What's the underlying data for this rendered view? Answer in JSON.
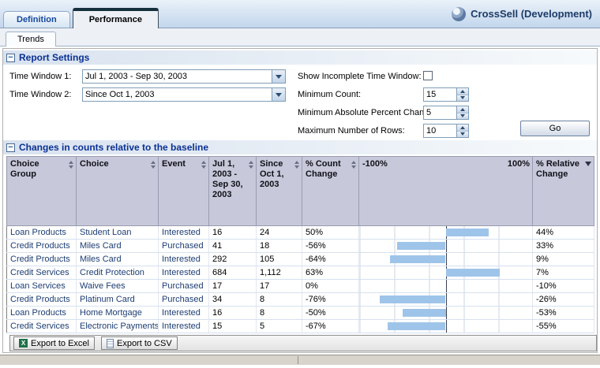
{
  "header": {
    "brand": "CrossSell (Development)",
    "tabs": [
      {
        "label": "Definition",
        "active": false
      },
      {
        "label": "Performance",
        "active": true
      }
    ],
    "subtab": "Trends"
  },
  "report_settings": {
    "title": "Report Settings",
    "collapse_icon": "−",
    "time_window_1": {
      "label": "Time Window 1:",
      "value": "Jul 1, 2003 - Sep 30, 2003"
    },
    "time_window_2": {
      "label": "Time Window 2:",
      "value": "Since Oct 1, 2003"
    },
    "show_incomplete": {
      "label": "Show Incomplete Time Window:",
      "checked": false
    },
    "minimum_count": {
      "label": "Minimum Count:",
      "value": "15"
    },
    "minimum_abs_percent_change": {
      "label": "Minimum Absolute Percent Change",
      "value": "5"
    },
    "maximum_rows": {
      "label": "Maximum Number of Rows:",
      "value": "10"
    },
    "go_button": "Go"
  },
  "changes_table": {
    "title": "Changes in counts relative to the baseline",
    "collapse_icon": "−",
    "columns": [
      {
        "label": "Choice Group",
        "sortable": true
      },
      {
        "label": "Choice",
        "sortable": true
      },
      {
        "label": "Event",
        "sortable": true
      },
      {
        "label": "Jul 1, 2003 - Sep 30, 2003",
        "sortable": true
      },
      {
        "label": "Since Oct 1, 2003",
        "sortable": true
      },
      {
        "label": "% Count Change",
        "sortable": true
      },
      {
        "label": "",
        "axis_min": "-100%",
        "axis_max": "100%"
      },
      {
        "label": "% Relative Change",
        "sortable": true,
        "sort": "desc"
      }
    ],
    "rows": [
      {
        "choice_group": "Loan Products",
        "choice": "Student Loan",
        "event": "Interested",
        "window1": "16",
        "window2": "24",
        "count_change": "50%",
        "count_change_value": 50,
        "relative_change": "44%"
      },
      {
        "choice_group": "Credit Products",
        "choice": "Miles Card",
        "event": "Purchased",
        "window1": "41",
        "window2": "18",
        "count_change": "-56%",
        "count_change_value": -56,
        "relative_change": "33%"
      },
      {
        "choice_group": "Credit Products",
        "choice": "Miles Card",
        "event": "Interested",
        "window1": "292",
        "window2": "105",
        "count_change": "-64%",
        "count_change_value": -64,
        "relative_change": "9%"
      },
      {
        "choice_group": "Credit Services",
        "choice": "Credit Protection",
        "event": "Interested",
        "window1": "684",
        "window2": "1,112",
        "count_change": "63%",
        "count_change_value": 63,
        "relative_change": "7%"
      },
      {
        "choice_group": "Loan Services",
        "choice": "Waive Fees",
        "event": "Purchased",
        "window1": "17",
        "window2": "17",
        "count_change": "0%",
        "count_change_value": 0,
        "relative_change": "-10%"
      },
      {
        "choice_group": "Credit Products",
        "choice": "Platinum Card",
        "event": "Purchased",
        "window1": "34",
        "window2": "8",
        "count_change": "-76%",
        "count_change_value": -76,
        "relative_change": "-26%"
      },
      {
        "choice_group": "Loan Products",
        "choice": "Home Mortgage",
        "event": "Interested",
        "window1": "16",
        "window2": "8",
        "count_change": "-50%",
        "count_change_value": -50,
        "relative_change": "-53%"
      },
      {
        "choice_group": "Credit Services",
        "choice": "Electronic Payments",
        "event": "Interested",
        "window1": "15",
        "window2": "5",
        "count_change": "-67%",
        "count_change_value": -67,
        "relative_change": "-55%"
      }
    ],
    "chart_axis": {
      "min": -100,
      "max": 100,
      "plotted_field": "count_change_value"
    }
  },
  "export_bar": {
    "excel_label": "Export to Excel",
    "excel_icon_letter": "X",
    "csv_label": "Export to CSV"
  }
}
